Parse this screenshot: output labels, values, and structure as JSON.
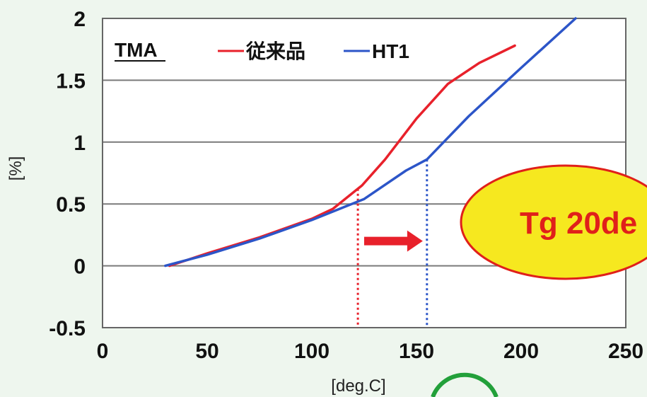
{
  "chart_data": {
    "type": "line",
    "title": "",
    "xlabel": "[deg.C]",
    "ylabel": "[%]",
    "xlim": [
      0,
      250
    ],
    "ylim": [
      -0.5,
      2
    ],
    "x_ticks": [
      "0",
      "50",
      "100",
      "150",
      "200",
      "250"
    ],
    "y_ticks": [
      "-0.5",
      "0",
      "0.5",
      "1",
      "1.5",
      "2"
    ],
    "grid": "horizontal",
    "legend_title": "TMA",
    "legend_position": "top-left",
    "series": [
      {
        "name": "従来品",
        "color": "#e8212b",
        "x": [
          32,
          50,
          75,
          100,
          110,
          124,
          135,
          150,
          165,
          180,
          197
        ],
        "y": [
          0,
          0.1,
          0.23,
          0.38,
          0.46,
          0.65,
          0.86,
          1.19,
          1.47,
          1.64,
          1.78
        ]
      },
      {
        "name": "HT1",
        "color": "#2c55c8",
        "x": [
          30,
          50,
          75,
          100,
          125,
          145,
          155,
          175,
          200,
          226
        ],
        "y": [
          0,
          0.09,
          0.22,
          0.37,
          0.54,
          0.77,
          0.86,
          1.21,
          1.6,
          2.0
        ]
      }
    ],
    "annotations": {
      "red_marker_x": 122,
      "blue_marker_x": 155,
      "arrow_from_x": 125,
      "arrow_to_x": 153,
      "badge_text": "Tg 20de",
      "badge_fill": "#f6e81f",
      "badge_stroke": "#e0201a"
    }
  }
}
